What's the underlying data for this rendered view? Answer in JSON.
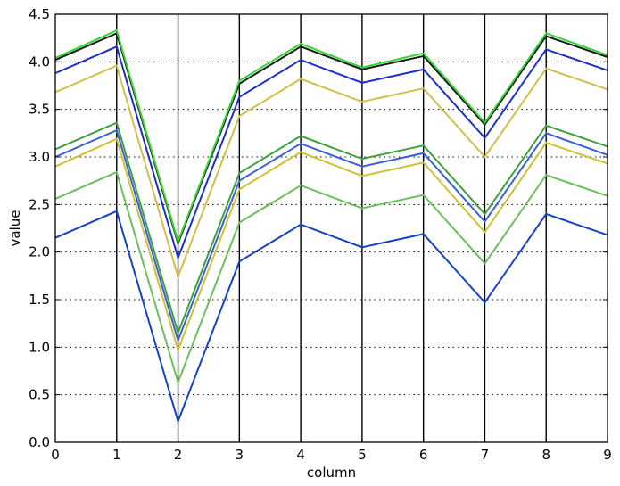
{
  "chart_data": {
    "type": "line",
    "xlabel": "column",
    "ylabel": "value",
    "x": [
      0,
      1,
      2,
      3,
      4,
      5,
      6,
      7,
      8,
      9
    ],
    "xlim": [
      0,
      9
    ],
    "ylim": [
      0.0,
      4.5
    ],
    "x_ticks": [
      "0",
      "1",
      "2",
      "3",
      "4",
      "5",
      "6",
      "7",
      "8",
      "9"
    ],
    "y_ticks": [
      "0.0",
      "0.5",
      "1.0",
      "1.5",
      "2.0",
      "2.5",
      "3.0",
      "3.5",
      "4.0",
      "4.5"
    ],
    "y_tick_values": [
      0.0,
      0.5,
      1.0,
      1.5,
      2.0,
      2.5,
      3.0,
      3.5,
      4.0,
      4.5
    ],
    "grid": "horizontal dotted",
    "legend": "none",
    "vertical_lines_at": [
      1,
      2,
      3,
      4,
      5,
      6,
      7,
      8
    ],
    "series": [
      {
        "color": "#1443c8",
        "values": [
          2.15,
          2.43,
          0.22,
          1.9,
          2.29,
          2.05,
          2.19,
          1.47,
          2.4,
          2.18
        ]
      },
      {
        "color": "#6cc05c",
        "values": [
          2.56,
          2.84,
          0.63,
          2.31,
          2.7,
          2.46,
          2.6,
          1.88,
          2.81,
          2.59
        ]
      },
      {
        "color": "#cfc232",
        "values": [
          2.9,
          3.19,
          0.97,
          2.66,
          3.05,
          2.8,
          2.94,
          2.21,
          3.15,
          2.93
        ]
      },
      {
        "color": "#3a5fdb",
        "values": [
          3.0,
          3.28,
          1.07,
          2.75,
          3.14,
          2.9,
          3.04,
          2.32,
          3.25,
          3.02
        ]
      },
      {
        "color": "#3ea03e",
        "values": [
          3.08,
          3.36,
          1.15,
          2.83,
          3.22,
          2.98,
          3.12,
          2.4,
          3.33,
          3.11
        ]
      },
      {
        "color": "#d2bf4a",
        "values": [
          3.68,
          3.96,
          1.74,
          3.43,
          3.82,
          3.58,
          3.72,
          3.0,
          3.93,
          3.71
        ]
      },
      {
        "color": "#1a2fcc",
        "values": [
          3.88,
          4.16,
          1.94,
          3.63,
          4.02,
          3.78,
          3.92,
          3.2,
          4.13,
          3.91
        ]
      },
      {
        "color": "#1a1a1a",
        "values": [
          4.02,
          4.3,
          2.09,
          3.77,
          4.16,
          3.92,
          4.06,
          3.34,
          4.27,
          4.05
        ]
      },
      {
        "color": "#33d633",
        "values": [
          4.04,
          4.33,
          2.11,
          3.8,
          4.19,
          3.94,
          4.09,
          3.36,
          4.3,
          4.07
        ]
      }
    ]
  }
}
